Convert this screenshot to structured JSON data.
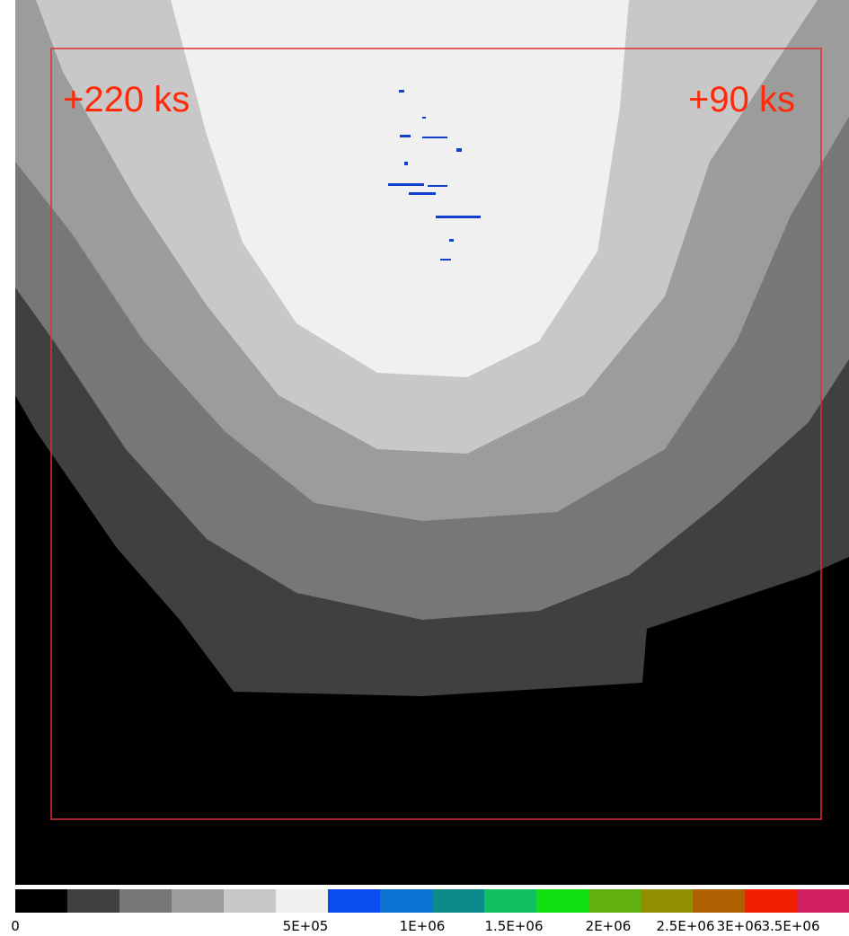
{
  "annotations": {
    "left": "+220 ks",
    "right": "+90 ks"
  },
  "colorbar": {
    "colors": [
      "#000000",
      "#404040",
      "#777777",
      "#9c9c9c",
      "#c8c8c8",
      "#f0f0f0",
      "#0a4cf0",
      "#0a72d0",
      "#0a8a8a",
      "#10c060",
      "#10e010",
      "#60b010",
      "#909000",
      "#b06000",
      "#f02000",
      "#d02060"
    ],
    "labels": [
      "0",
      "5E+05",
      "1E+06",
      "1.5E+06",
      "2E+06",
      "2.5E+06",
      "3E+06",
      "3.5E+06"
    ]
  }
}
